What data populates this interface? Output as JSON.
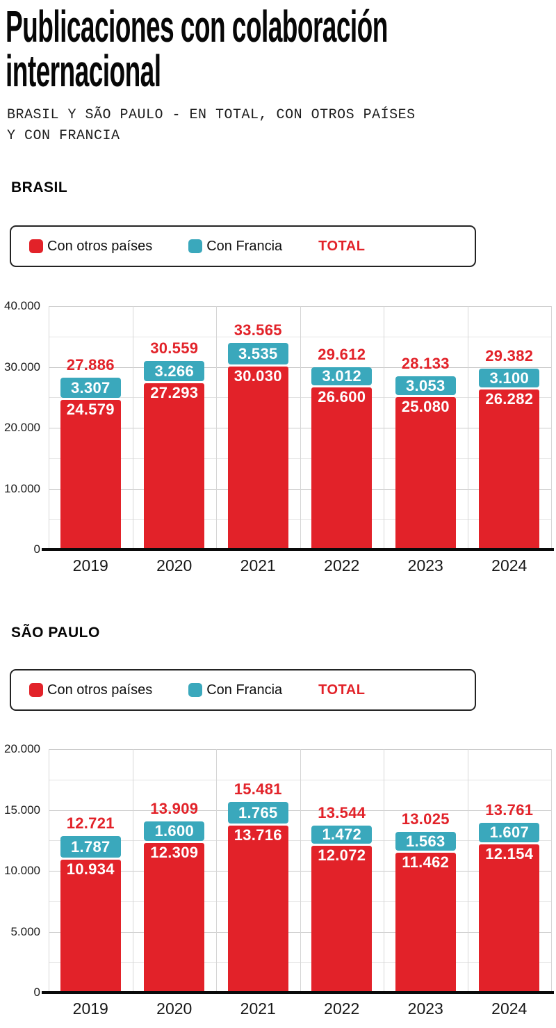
{
  "page": {
    "title": "Publicaciones con colaboración\ninternacional",
    "subtitle": "BRASIL Y SÃO PAULO - EN TOTAL, CON OTROS PAÍSES\nY CON FRANCIA"
  },
  "colors": {
    "otros": "#e22229",
    "francia": "#3aa8bc",
    "total_text": "#e22229",
    "grid_major": "#c8c8c8",
    "grid_minor": "#e3e3e3",
    "grid_vertical": "#d6d6d6",
    "axis": "#0a0a0a"
  },
  "legend": {
    "otros_label": "Con otros países",
    "francia_label": "Con Francia",
    "total_label": "TOTAL"
  },
  "chart_data": [
    {
      "type": "bar",
      "stacked": true,
      "section_title": "BRASIL",
      "categories": [
        "2019",
        "2020",
        "2021",
        "2022",
        "2023",
        "2024"
      ],
      "series": [
        {
          "name": "Con otros países",
          "values": [
            24579,
            27293,
            30030,
            26600,
            25080,
            26282
          ]
        },
        {
          "name": "Con Francia",
          "values": [
            3307,
            3266,
            3535,
            3012,
            3053,
            3100
          ]
        }
      ],
      "totals": [
        27886,
        30559,
        33565,
        29612,
        28133,
        29382
      ],
      "xlabel": "",
      "ylabel": "",
      "ylim": [
        0,
        40000
      ],
      "ytick_step": 10000,
      "yticks_labels": [
        "0",
        "10.000",
        "20.000",
        "30.000",
        "40.000"
      ],
      "grid": true,
      "legend_position": "top"
    },
    {
      "type": "bar",
      "stacked": true,
      "section_title": "SÃO PAULO",
      "categories": [
        "2019",
        "2020",
        "2021",
        "2022",
        "2023",
        "2024"
      ],
      "series": [
        {
          "name": "Con otros países",
          "values": [
            10934,
            12309,
            13716,
            12072,
            11462,
            12154
          ]
        },
        {
          "name": "Con Francia",
          "values": [
            1787,
            1600,
            1765,
            1472,
            1563,
            1607
          ]
        }
      ],
      "totals": [
        12721,
        13909,
        15481,
        13544,
        13025,
        13761
      ],
      "xlabel": "",
      "ylabel": "",
      "ylim": [
        0,
        20000
      ],
      "ytick_step": 5000,
      "yticks_labels": [
        "0",
        "5.000",
        "10.000",
        "15.000",
        "20.000"
      ],
      "grid": true,
      "legend_position": "top"
    }
  ]
}
